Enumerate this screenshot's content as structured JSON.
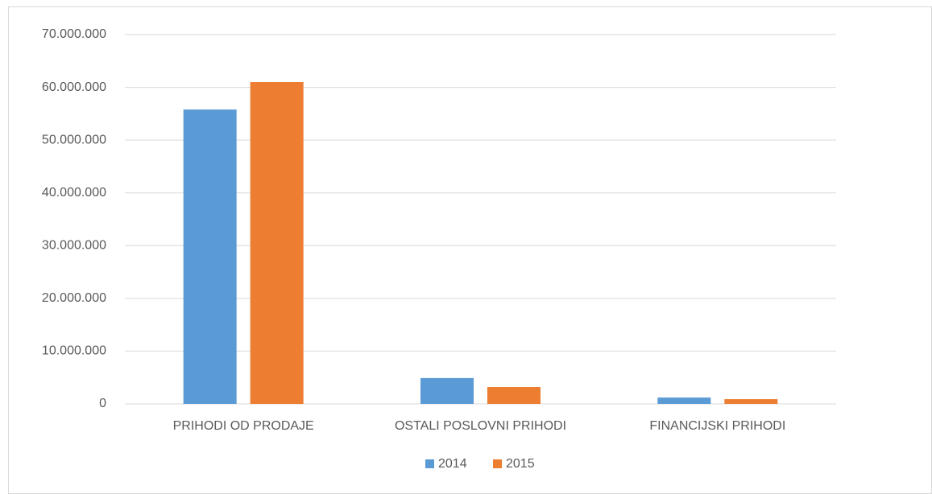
{
  "chart_data": {
    "type": "bar",
    "categories": [
      "PRIHODI OD PRODAJE",
      "OSTALI POSLOVNI PRIHODI",
      "FINANCIJSKI PRIHODI"
    ],
    "series": [
      {
        "name": "2014",
        "color": "#5b9bd5",
        "values": [
          55800000,
          4900000,
          1200000
        ]
      },
      {
        "name": "2015",
        "color": "#ed7d31",
        "values": [
          61000000,
          3200000,
          900000
        ]
      }
    ],
    "ylim": [
      0,
      70000000
    ],
    "yticks": [
      0,
      {
        "value": 10000000,
        "label": "10.000.000"
      },
      {
        "value": 20000000,
        "label": "20.000.000"
      },
      {
        "value": 30000000,
        "label": "30.000.000"
      },
      {
        "value": 40000000,
        "label": "40.000.000"
      },
      {
        "value": 50000000,
        "label": "50.000.000"
      },
      {
        "value": 60000000,
        "label": "60.000.000"
      },
      {
        "value": 70000000,
        "label": "70.000.000"
      }
    ],
    "grid": true,
    "legend": "bottom"
  }
}
